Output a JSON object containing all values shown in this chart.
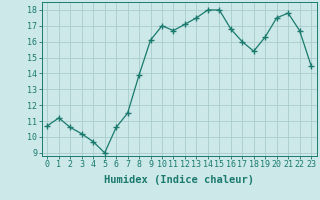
{
  "x": [
    0,
    1,
    2,
    3,
    4,
    5,
    6,
    7,
    8,
    9,
    10,
    11,
    12,
    13,
    14,
    15,
    16,
    17,
    18,
    19,
    20,
    21,
    22,
    23
  ],
  "y": [
    10.7,
    11.2,
    10.6,
    10.2,
    9.7,
    9.0,
    10.6,
    11.5,
    13.9,
    16.1,
    17.0,
    16.7,
    17.1,
    17.5,
    18.0,
    18.0,
    16.8,
    16.0,
    15.4,
    16.3,
    17.5,
    17.8,
    16.7,
    14.5
  ],
  "line_color": "#1a7a6e",
  "marker": "D",
  "marker_size": 2.5,
  "bg_color": "#cce8e8",
  "grid_color": "#aacccc",
  "xlabel": "Humidex (Indice chaleur)",
  "xlabel_fontsize": 7.5,
  "tick_fontsize": 6,
  "ylim": [
    8.8,
    18.5
  ],
  "xlim": [
    -0.5,
    23.5
  ],
  "yticks": [
    9,
    10,
    11,
    12,
    13,
    14,
    15,
    16,
    17,
    18
  ],
  "xticks": [
    0,
    1,
    2,
    3,
    4,
    5,
    6,
    7,
    8,
    9,
    10,
    11,
    12,
    13,
    14,
    15,
    16,
    17,
    18,
    19,
    20,
    21,
    22,
    23
  ]
}
